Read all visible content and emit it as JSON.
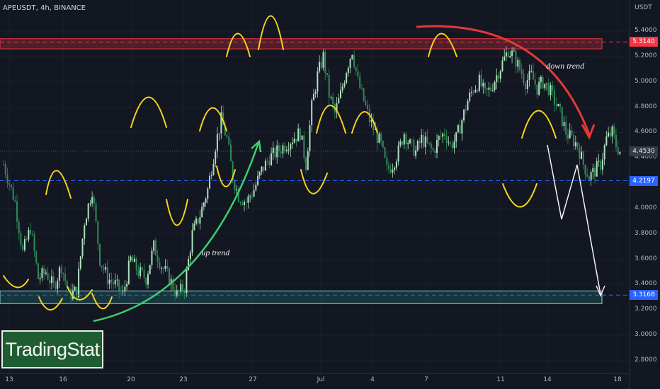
{
  "chart_data": {
    "type": "candlestick",
    "symbol_label": "APEUSDT, 4h, BINANCE",
    "currency": "USDT",
    "x_ticks": [
      "13",
      "16",
      "20",
      "23",
      "27",
      "Jul",
      "4",
      "7",
      "11",
      "14",
      "18"
    ],
    "y_ticks": [
      "5.4000",
      "5.2000",
      "5.0000",
      "4.8000",
      "4.6000",
      "4.4000",
      "4.2000",
      "4.0000",
      "3.8000",
      "3.6000",
      "3.4000",
      "3.2000",
      "3.0000",
      "2.8000"
    ],
    "ylim": [
      2.75,
      5.6
    ],
    "price_tags": [
      {
        "label": "5.3140",
        "value": 5.314,
        "color": "#f23645"
      },
      {
        "label": "4.4530",
        "value": 4.453,
        "color": "#5d606b"
      },
      {
        "label": "4.2197",
        "value": 4.2197,
        "color": "#2962ff"
      },
      {
        "label": "3.3168",
        "value": 3.3168,
        "color": "#2962ff"
      }
    ],
    "zones": [
      {
        "name": "resistance",
        "from": 5.26,
        "to": 5.34,
        "color": "#f23645"
      },
      {
        "name": "support",
        "from": 3.25,
        "to": 3.35,
        "color": "#26a69a"
      }
    ],
    "close_path": [
      [
        0,
        4.35
      ],
      [
        6,
        4.05
      ],
      [
        10,
        3.65
      ],
      [
        14,
        3.85
      ],
      [
        18,
        3.45
      ],
      [
        22,
        3.5
      ],
      [
        26,
        3.38
      ],
      [
        30,
        3.55
      ],
      [
        34,
        3.32
      ],
      [
        38,
        3.35
      ],
      [
        42,
        3.9
      ],
      [
        46,
        4.15
      ],
      [
        50,
        3.6
      ],
      [
        54,
        3.45
      ],
      [
        58,
        3.4
      ],
      [
        62,
        3.32
      ],
      [
        66,
        3.6
      ],
      [
        70,
        3.5
      ],
      [
        74,
        3.45
      ],
      [
        78,
        3.7
      ],
      [
        82,
        3.55
      ],
      [
        86,
        3.45
      ],
      [
        90,
        3.32
      ],
      [
        94,
        3.38
      ],
      [
        98,
        3.8
      ],
      [
        102,
        3.95
      ],
      [
        106,
        4.15
      ],
      [
        110,
        4.5
      ],
      [
        113,
        4.7
      ],
      [
        116,
        4.55
      ],
      [
        119,
        4.25
      ],
      [
        122,
        4.1
      ],
      [
        126,
        4.05
      ],
      [
        130,
        4.15
      ],
      [
        134,
        4.3
      ],
      [
        138,
        4.4
      ],
      [
        142,
        4.45
      ],
      [
        146,
        4.5
      ],
      [
        150,
        4.55
      ],
      [
        154,
        4.6
      ],
      [
        157,
        4.35
      ],
      [
        160,
        4.8
      ],
      [
        163,
        5.05
      ],
      [
        166,
        5.2
      ],
      [
        169,
        4.9
      ],
      [
        172,
        4.75
      ],
      [
        175,
        4.9
      ],
      [
        178,
        5.1
      ],
      [
        181,
        5.25
      ],
      [
        184,
        5.0
      ],
      [
        187,
        4.85
      ],
      [
        190,
        4.7
      ],
      [
        193,
        4.6
      ],
      [
        196,
        4.5
      ],
      [
        199,
        4.3
      ],
      [
        202,
        4.35
      ],
      [
        205,
        4.45
      ],
      [
        208,
        4.6
      ],
      [
        211,
        4.5
      ],
      [
        214,
        4.45
      ],
      [
        217,
        4.55
      ],
      [
        220,
        4.5
      ],
      [
        223,
        4.45
      ],
      [
        226,
        4.55
      ],
      [
        229,
        4.6
      ],
      [
        232,
        4.5
      ],
      [
        235,
        4.55
      ],
      [
        238,
        4.7
      ],
      [
        241,
        4.85
      ],
      [
        244,
        4.95
      ],
      [
        247,
        5.0
      ],
      [
        250,
        4.9
      ],
      [
        253,
        4.95
      ],
      [
        256,
        5.05
      ],
      [
        259,
        5.15
      ],
      [
        262,
        5.25
      ],
      [
        265,
        5.2
      ],
      [
        268,
        5.1
      ],
      [
        271,
        5.0
      ],
      [
        274,
        5.05
      ],
      [
        277,
        4.95
      ],
      [
        280,
        5.0
      ],
      [
        283,
        4.95
      ],
      [
        286,
        4.85
      ],
      [
        289,
        4.75
      ],
      [
        292,
        4.6
      ],
      [
        295,
        4.55
      ],
      [
        298,
        4.5
      ],
      [
        301,
        4.35
      ],
      [
        304,
        4.25
      ],
      [
        307,
        4.3
      ],
      [
        310,
        4.35
      ],
      [
        313,
        4.55
      ],
      [
        316,
        4.6
      ],
      [
        318,
        4.5
      ],
      [
        320,
        4.45
      ]
    ],
    "annotations": [
      {
        "text": "up trend",
        "x_bar": 106,
        "y": 3.65
      },
      {
        "text": "down trend",
        "x_bar": 285,
        "y": 5.12
      }
    ]
  },
  "branding": {
    "logo_text": "TradingStat"
  }
}
